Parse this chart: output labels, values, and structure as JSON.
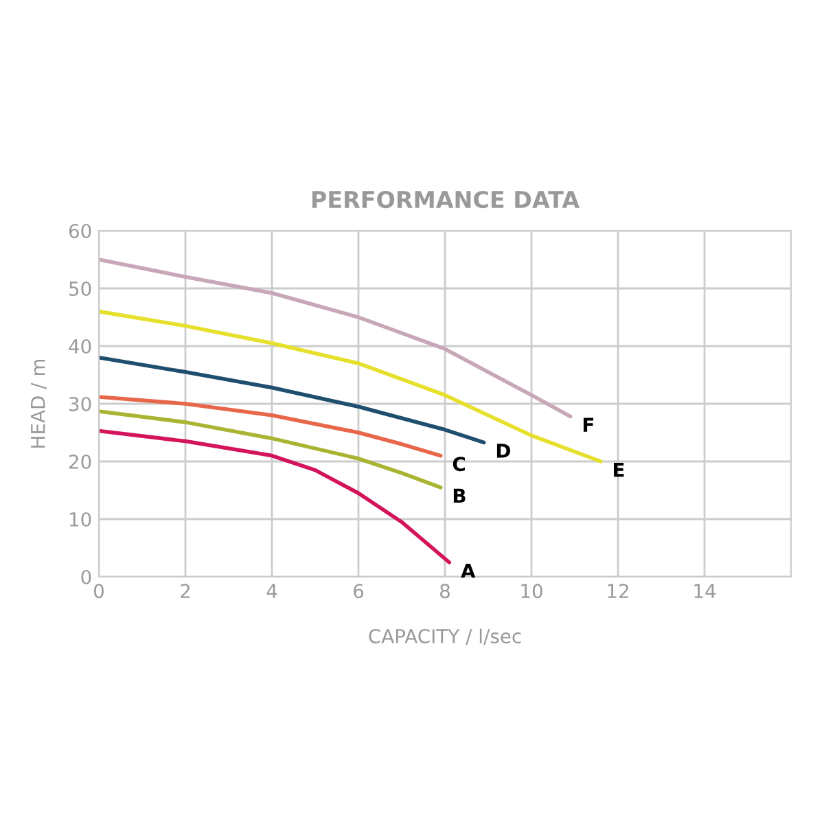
{
  "chart_data": {
    "type": "line",
    "title": "PERFORMANCE DATA",
    "xlabel": "CAPACITY / l/sec",
    "ylabel": "HEAD / m",
    "xlim": [
      0,
      16
    ],
    "xticks": [
      0,
      2,
      4,
      6,
      8,
      10,
      12,
      14
    ],
    "ylim": [
      0,
      60
    ],
    "yticks": [
      0,
      10,
      20,
      30,
      40,
      50,
      60
    ],
    "grid": true,
    "legend": false,
    "marker": "none",
    "line_style": "solid",
    "series": [
      {
        "name": "A",
        "color": "#d4145a",
        "x": [
          0,
          2,
          4,
          5,
          6,
          7,
          8.1
        ],
        "values": [
          25.3,
          23.5,
          21,
          18.5,
          14.5,
          9.5,
          2.5
        ]
      },
      {
        "name": "B",
        "color": "#a8b432",
        "x": [
          0,
          2,
          4,
          6,
          7,
          7.9
        ],
        "values": [
          28.7,
          26.8,
          24,
          20.5,
          18,
          15.5
        ]
      },
      {
        "name": "C",
        "color": "#e8664a",
        "x": [
          0,
          2,
          4,
          6,
          7,
          7.9
        ],
        "values": [
          31.2,
          30,
          28,
          25,
          23,
          21
        ]
      },
      {
        "name": "D",
        "color": "#1f4e6e",
        "x": [
          0,
          2,
          4,
          6,
          8,
          8.9
        ],
        "values": [
          38,
          35.5,
          32.8,
          29.5,
          25.5,
          23.3
        ]
      },
      {
        "name": "E",
        "color": "#e6e02c",
        "x": [
          0,
          2,
          4,
          6,
          8,
          10,
          11.6
        ],
        "values": [
          46,
          43.5,
          40.5,
          37,
          31.5,
          24.5,
          20
        ]
      },
      {
        "name": "F",
        "color": "#c8a8b8",
        "x": [
          0,
          2,
          4,
          6,
          8,
          10,
          10.9
        ],
        "values": [
          55,
          52,
          49.2,
          45,
          39.5,
          31.5,
          27.8
        ]
      }
    ]
  }
}
